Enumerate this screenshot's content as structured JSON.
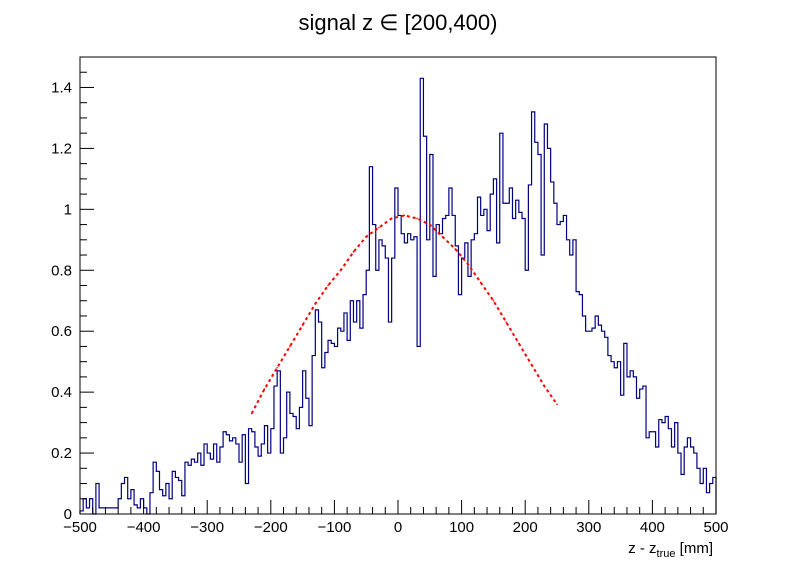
{
  "chart_data": {
    "type": "histogram",
    "title": "signal z ∈ [200,400)",
    "xlabel_main": "z - z",
    "xlabel_sub": "true",
    "xlabel_unit": " [mm]",
    "xlim": [
      -500,
      500
    ],
    "ylim": [
      0,
      1.5
    ],
    "x_ticks": [
      -500,
      -400,
      -300,
      -200,
      -100,
      0,
      100,
      200,
      300,
      400,
      500
    ],
    "x_tick_labels": [
      "−500",
      "−400",
      "−300",
      "−200",
      "−100",
      "0",
      "100",
      "200",
      "300",
      "400",
      "500"
    ],
    "y_ticks": [
      0,
      0.2,
      0.4,
      0.6,
      0.8,
      1.0,
      1.2,
      1.4
    ],
    "y_tick_labels": [
      "0",
      "0.2",
      "0.4",
      "0.6",
      "0.8",
      "1",
      "1.2",
      "1.4"
    ],
    "grid": false,
    "bin_width": 5,
    "series": [
      {
        "type": "histogram",
        "color": "#000080",
        "bin_start": -500,
        "values": [
          0.01,
          0.05,
          0.02,
          0.05,
          0.0,
          0.1,
          0.02,
          0.02,
          0.02,
          0.02,
          0.02,
          0.02,
          0.05,
          0.1,
          0.12,
          0.05,
          0.08,
          0.03,
          0.02,
          0.05,
          0.02,
          0.0,
          0.07,
          0.17,
          0.14,
          0.08,
          0.06,
          0.1,
          0.05,
          0.14,
          0.12,
          0.11,
          0.06,
          0.17,
          0.16,
          0.18,
          0.17,
          0.2,
          0.16,
          0.23,
          0.2,
          0.18,
          0.23,
          0.17,
          0.22,
          0.27,
          0.26,
          0.24,
          0.25,
          0.23,
          0.17,
          0.26,
          0.1,
          0.28,
          0.27,
          0.22,
          0.19,
          0.23,
          0.29,
          0.2,
          0.28,
          0.42,
          0.47,
          0.2,
          0.25,
          0.4,
          0.33,
          0.32,
          0.28,
          0.35,
          0.47,
          0.38,
          0.29,
          0.52,
          0.67,
          0.63,
          0.48,
          0.53,
          0.57,
          0.56,
          0.55,
          0.61,
          0.6,
          0.66,
          0.57,
          0.7,
          0.63,
          0.7,
          0.61,
          0.72,
          0.8,
          1.14,
          0.95,
          0.8,
          0.9,
          0.88,
          0.84,
          0.63,
          0.84,
          1.07,
          0.98,
          0.92,
          0.89,
          0.92,
          0.9,
          0.91,
          0.55,
          1.43,
          1.24,
          0.9,
          1.18,
          0.78,
          0.95,
          0.92,
          0.97,
          0.98,
          1.07,
          0.98,
          0.88,
          0.72,
          0.84,
          0.89,
          0.78,
          0.9,
          0.92,
          1.04,
          0.98,
          1.0,
          0.93,
          1.05,
          1.1,
          0.89,
          1.25,
          1.02,
          1.02,
          1.07,
          0.97,
          1.03,
          0.99,
          0.97,
          0.8,
          1.08,
          1.32,
          1.22,
          1.18,
          0.85,
          1.28,
          1.2,
          1.09,
          1.02,
          0.95,
          0.96,
          0.98,
          0.9,
          0.85,
          0.9,
          0.73,
          0.72,
          0.65,
          0.6,
          0.6,
          0.61,
          0.65,
          0.62,
          0.6,
          0.58,
          0.52,
          0.5,
          0.48,
          0.5,
          0.39,
          0.56,
          0.45,
          0.47,
          0.45,
          0.38,
          0.41,
          0.42,
          0.25,
          0.27,
          0.27,
          0.22,
          0.31,
          0.3,
          0.32,
          0.28,
          0.22,
          0.3,
          0.2,
          0.13,
          0.22,
          0.25,
          0.22,
          0.2,
          0.15,
          0.1,
          0.15,
          0.07,
          0.1,
          0.12
        ]
      },
      {
        "type": "fit",
        "color": "#ff0000",
        "x": [
          -230,
          -210,
          -190,
          -170,
          -150,
          -130,
          -110,
          -90,
          -70,
          -50,
          -30,
          -10,
          10,
          30,
          50,
          70,
          90,
          110,
          130,
          150,
          170,
          190,
          210,
          230,
          250
        ],
        "values": [
          0.33,
          0.41,
          0.48,
          0.55,
          0.62,
          0.69,
          0.75,
          0.8,
          0.86,
          0.91,
          0.94,
          0.97,
          0.98,
          0.97,
          0.95,
          0.91,
          0.87,
          0.82,
          0.76,
          0.7,
          0.63,
          0.56,
          0.49,
          0.42,
          0.36
        ]
      }
    ]
  }
}
